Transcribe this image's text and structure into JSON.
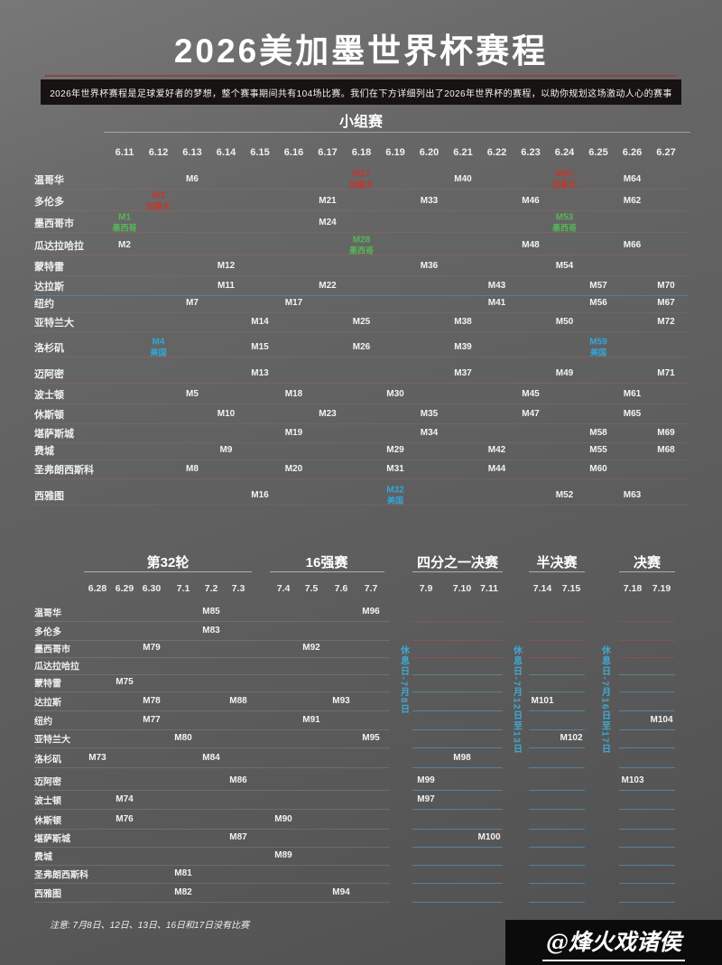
{
  "page": {
    "title": "2026美加墨世界杯赛程",
    "subtitle": "2026年世界杯赛程是足球爱好者的梦想，整个赛事期间共有104场比赛。我们在下方详细列出了2026年世界杯的赛程，以助你规划这场激动人心的赛事",
    "note": "注意: 7月8日、12日、13日、16日和17日没有比赛",
    "watermark": "@烽火戏诸侯"
  },
  "colors": {
    "divider": "#8e463e",
    "canada": "#c4372e",
    "mexico": "#55b657",
    "usa": "#32a7d8",
    "rest_note": "#3fa9d2"
  },
  "group_stage": {
    "title": "小组赛",
    "dates": [
      "6.11",
      "6.12",
      "6.13",
      "6.14",
      "6.15",
      "6.16",
      "6.17",
      "6.18",
      "6.19",
      "6.20",
      "6.21",
      "6.22",
      "6.23",
      "6.24",
      "6.25",
      "6.26",
      "6.27"
    ],
    "cities": [
      "温哥华",
      "多伦多",
      "墨西哥市",
      "瓜达拉哈拉",
      "蒙特雷",
      "达拉斯",
      "纽约",
      "亚特兰大",
      "洛杉矶",
      "迈阿密",
      "波士顿",
      "休斯顿",
      "堪萨斯城",
      "费城",
      "圣弗朗西斯科",
      "西雅图"
    ],
    "matches": [
      {
        "label": "M1",
        "city": "墨西哥市",
        "date": "6.11",
        "color": "mexico",
        "sub": "墨西哥"
      },
      {
        "label": "M2",
        "city": "瓜达拉哈拉",
        "date": "6.11"
      },
      {
        "label": "M3",
        "city": "多伦多",
        "date": "6.12",
        "color": "canada",
        "sub": "加拿大"
      },
      {
        "label": "M4",
        "city": "洛杉矶",
        "date": "6.12",
        "color": "usa",
        "sub": "美国"
      },
      {
        "label": "M5",
        "city": "波士顿",
        "date": "6.13"
      },
      {
        "label": "M6",
        "city": "温哥华",
        "date": "6.13"
      },
      {
        "label": "M7",
        "city": "纽约",
        "date": "6.13"
      },
      {
        "label": "M8",
        "city": "圣弗朗西斯科",
        "date": "6.13"
      },
      {
        "label": "M9",
        "city": "费城",
        "date": "6.14"
      },
      {
        "label": "M10",
        "city": "休斯顿",
        "date": "6.14"
      },
      {
        "label": "M11",
        "city": "达拉斯",
        "date": "6.14"
      },
      {
        "label": "M12",
        "city": "蒙特雷",
        "date": "6.14"
      },
      {
        "label": "M13",
        "city": "迈阿密",
        "date": "6.15"
      },
      {
        "label": "M14",
        "city": "亚特兰大",
        "date": "6.15"
      },
      {
        "label": "M15",
        "city": "洛杉矶",
        "date": "6.15"
      },
      {
        "label": "M16",
        "city": "西雅图",
        "date": "6.15"
      },
      {
        "label": "M17",
        "city": "纽约",
        "date": "6.16"
      },
      {
        "label": "M18",
        "city": "波士顿",
        "date": "6.16"
      },
      {
        "label": "M19",
        "city": "堪萨斯城",
        "date": "6.16"
      },
      {
        "label": "M20",
        "city": "圣弗朗西斯科",
        "date": "6.16"
      },
      {
        "label": "M21",
        "city": "多伦多",
        "date": "6.17"
      },
      {
        "label": "M22",
        "city": "达拉斯",
        "date": "6.17"
      },
      {
        "label": "M23",
        "city": "休斯顿",
        "date": "6.17"
      },
      {
        "label": "M24",
        "city": "墨西哥市",
        "date": "6.17"
      },
      {
        "label": "M25",
        "city": "亚特兰大",
        "date": "6.18"
      },
      {
        "label": "M26",
        "city": "洛杉矶",
        "date": "6.18"
      },
      {
        "label": "M27",
        "city": "温哥华",
        "date": "6.18",
        "color": "canada",
        "sub": "加拿大"
      },
      {
        "label": "M28",
        "city": "瓜达拉哈拉",
        "date": "6.18",
        "color": "mexico",
        "sub": "墨西哥"
      },
      {
        "label": "M29",
        "city": "费城",
        "date": "6.19"
      },
      {
        "label": "M30",
        "city": "波士顿",
        "date": "6.19"
      },
      {
        "label": "M31",
        "city": "圣弗朗西斯科",
        "date": "6.19"
      },
      {
        "label": "M32",
        "city": "西雅图",
        "date": "6.19",
        "color": "usa",
        "sub": "美国"
      },
      {
        "label": "M33",
        "city": "多伦多",
        "date": "6.20"
      },
      {
        "label": "M34",
        "city": "堪萨斯城",
        "date": "6.20"
      },
      {
        "label": "M35",
        "city": "休斯顿",
        "date": "6.20"
      },
      {
        "label": "M36",
        "city": "蒙特雷",
        "date": "6.20"
      },
      {
        "label": "M37",
        "city": "迈阿密",
        "date": "6.21"
      },
      {
        "label": "M38",
        "city": "亚特兰大",
        "date": "6.21"
      },
      {
        "label": "M39",
        "city": "洛杉矶",
        "date": "6.21"
      },
      {
        "label": "M40",
        "city": "温哥华",
        "date": "6.21"
      },
      {
        "label": "M41",
        "city": "纽约",
        "date": "6.22"
      },
      {
        "label": "M42",
        "city": "费城",
        "date": "6.22"
      },
      {
        "label": "M43",
        "city": "达拉斯",
        "date": "6.22"
      },
      {
        "label": "M44",
        "city": "圣弗朗西斯科",
        "date": "6.22"
      },
      {
        "label": "M45",
        "city": "波士顿",
        "date": "6.23"
      },
      {
        "label": "M46",
        "city": "多伦多",
        "date": "6.23"
      },
      {
        "label": "M47",
        "city": "休斯顿",
        "date": "6.23"
      },
      {
        "label": "M48",
        "city": "瓜达拉哈拉",
        "date": "6.23"
      },
      {
        "label": "M49",
        "city": "迈阿密",
        "date": "6.24"
      },
      {
        "label": "M50",
        "city": "亚特兰大",
        "date": "6.24"
      },
      {
        "label": "M51",
        "city": "温哥华",
        "date": "6.24",
        "color": "canada",
        "sub": "加拿大"
      },
      {
        "label": "M52",
        "city": "西雅图",
        "date": "6.24"
      },
      {
        "label": "M53",
        "city": "墨西哥市",
        "date": "6.24",
        "color": "mexico",
        "sub": "墨西哥"
      },
      {
        "label": "M54",
        "city": "蒙特雷",
        "date": "6.24"
      },
      {
        "label": "M55",
        "city": "费城",
        "date": "6.25"
      },
      {
        "label": "M56",
        "city": "纽约",
        "date": "6.25"
      },
      {
        "label": "M57",
        "city": "达拉斯",
        "date": "6.25"
      },
      {
        "label": "M58",
        "city": "堪萨斯城",
        "date": "6.25"
      },
      {
        "label": "M59",
        "city": "洛杉矶",
        "date": "6.25",
        "color": "usa",
        "sub": "美国"
      },
      {
        "label": "M60",
        "city": "圣弗朗西斯科",
        "date": "6.25"
      },
      {
        "label": "M61",
        "city": "波士顿",
        "date": "6.26"
      },
      {
        "label": "M62",
        "city": "多伦多",
        "date": "6.26"
      },
      {
        "label": "M63",
        "city": "西雅图",
        "date": "6.26"
      },
      {
        "label": "M64",
        "city": "温哥华",
        "date": "6.26"
      },
      {
        "label": "M65",
        "city": "休斯顿",
        "date": "6.26"
      },
      {
        "label": "M66",
        "city": "瓜达拉哈拉",
        "date": "6.26"
      },
      {
        "label": "M67",
        "city": "纽约",
        "date": "6.27"
      },
      {
        "label": "M68",
        "city": "费城",
        "date": "6.27"
      },
      {
        "label": "M69",
        "city": "堪萨斯城",
        "date": "6.27"
      },
      {
        "label": "M70",
        "city": "达拉斯",
        "date": "6.27"
      },
      {
        "label": "M71",
        "city": "迈阿密",
        "date": "6.27"
      },
      {
        "label": "M72",
        "city": "亚特兰大",
        "date": "6.27"
      }
    ]
  },
  "knockout": {
    "sections": [
      {
        "title": "第32轮",
        "dates": [
          "6.28",
          "6.29",
          "6.30",
          "7.1",
          "7.2",
          "7.3"
        ]
      },
      {
        "title": "16强赛",
        "dates": [
          "7.4",
          "7.5",
          "7.6",
          "7.7"
        ]
      },
      {
        "title": "四分之一决赛",
        "dates": [
          "7.9",
          "7.10",
          "7.11"
        ]
      },
      {
        "title": "半决赛",
        "dates": [
          "7.14",
          "7.15"
        ]
      },
      {
        "title": "决赛",
        "dates": [
          "7.18",
          "7.19"
        ]
      }
    ],
    "cities": [
      "温哥华",
      "多伦多",
      "墨西哥市",
      "瓜达拉哈拉",
      "蒙特雷",
      "达拉斯",
      "纽约",
      "亚特兰大",
      "洛杉矶",
      "迈阿密",
      "波士顿",
      "休斯顿",
      "堪萨斯城",
      "费城",
      "圣弗朗西斯科",
      "西雅图"
    ],
    "matches": [
      {
        "label": "M73",
        "city": "洛杉矶",
        "date": "6.28"
      },
      {
        "label": "M74",
        "city": "波士顿",
        "date": "6.29"
      },
      {
        "label": "M75",
        "city": "蒙特雷",
        "date": "6.29"
      },
      {
        "label": "M76",
        "city": "休斯顿",
        "date": "6.29"
      },
      {
        "label": "M77",
        "city": "纽约",
        "date": "6.30"
      },
      {
        "label": "M78",
        "city": "达拉斯",
        "date": "6.30"
      },
      {
        "label": "M79",
        "city": "墨西哥市",
        "date": "6.30"
      },
      {
        "label": "M80",
        "city": "亚特兰大",
        "date": "7.1"
      },
      {
        "label": "M81",
        "city": "圣弗朗西斯科",
        "date": "7.1"
      },
      {
        "label": "M82",
        "city": "西雅图",
        "date": "7.1"
      },
      {
        "label": "M83",
        "city": "多伦多",
        "date": "7.2"
      },
      {
        "label": "M84",
        "city": "洛杉矶",
        "date": "7.2"
      },
      {
        "label": "M85",
        "city": "温哥华",
        "date": "7.2"
      },
      {
        "label": "M86",
        "city": "迈阿密",
        "date": "7.3"
      },
      {
        "label": "M87",
        "city": "堪萨斯城",
        "date": "7.3"
      },
      {
        "label": "M88",
        "city": "达拉斯",
        "date": "7.3"
      },
      {
        "label": "M89",
        "city": "费城",
        "date": "7.4"
      },
      {
        "label": "M90",
        "city": "休斯顿",
        "date": "7.4"
      },
      {
        "label": "M91",
        "city": "纽约",
        "date": "7.5"
      },
      {
        "label": "M92",
        "city": "墨西哥市",
        "date": "7.5"
      },
      {
        "label": "M93",
        "city": "达拉斯",
        "date": "7.6"
      },
      {
        "label": "M94",
        "city": "西雅图",
        "date": "7.6"
      },
      {
        "label": "M95",
        "city": "亚特兰大",
        "date": "7.7"
      },
      {
        "label": "M96",
        "city": "温哥华",
        "date": "7.7"
      },
      {
        "label": "M97",
        "city": "波士顿",
        "date": "7.9"
      },
      {
        "label": "M98",
        "city": "洛杉矶",
        "date": "7.10"
      },
      {
        "label": "M99",
        "city": "迈阿密",
        "date": "7.9"
      },
      {
        "label": "M100",
        "city": "堪萨斯城",
        "date": "7.11"
      },
      {
        "label": "M101",
        "city": "达拉斯",
        "date": "7.14"
      },
      {
        "label": "M102",
        "city": "亚特兰大",
        "date": "7.15"
      },
      {
        "label": "M103",
        "city": "迈阿密",
        "date": "7.18"
      },
      {
        "label": "M104",
        "city": "纽约",
        "date": "7.19"
      }
    ],
    "rest_days": [
      "休息日-7月8日",
      "休息日-7月12日至13日",
      "休息日-7月16日至17日"
    ]
  }
}
